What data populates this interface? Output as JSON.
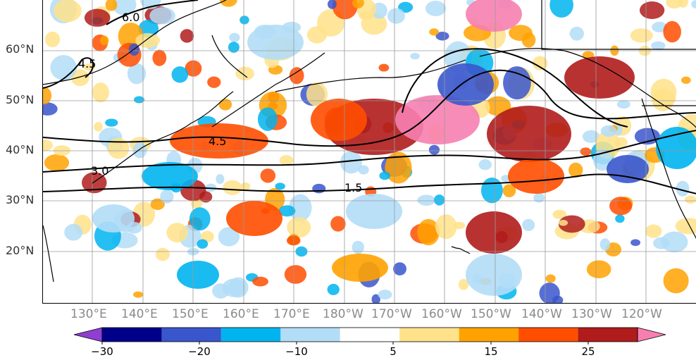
{
  "map": {
    "latitude_labels": [
      "60°N",
      "50°N",
      "40°N",
      "30°N",
      "20°N"
    ],
    "longitude_labels": [
      "130°E",
      "140°E",
      "150°E",
      "160°E",
      "170°E",
      "180°W",
      "170°W",
      "160°W",
      "150°W",
      "140°W",
      "130°W",
      "120°W"
    ],
    "contour_labels": [
      "6.0",
      "4.5",
      "4.5",
      "3.0",
      "1.5"
    ]
  },
  "colorbar": {
    "tick_labels": [
      "−30",
      "−20",
      "−10",
      "5",
      "15",
      "25"
    ],
    "colors": [
      "#8e3fd1",
      "#00008b",
      "#3a56cc",
      "#00b4f0",
      "#b3ddf7",
      "#ffffff",
      "#ffe28a",
      "#ffa200",
      "#ff4e00",
      "#b01c1c",
      "#f77fb0"
    ]
  }
}
